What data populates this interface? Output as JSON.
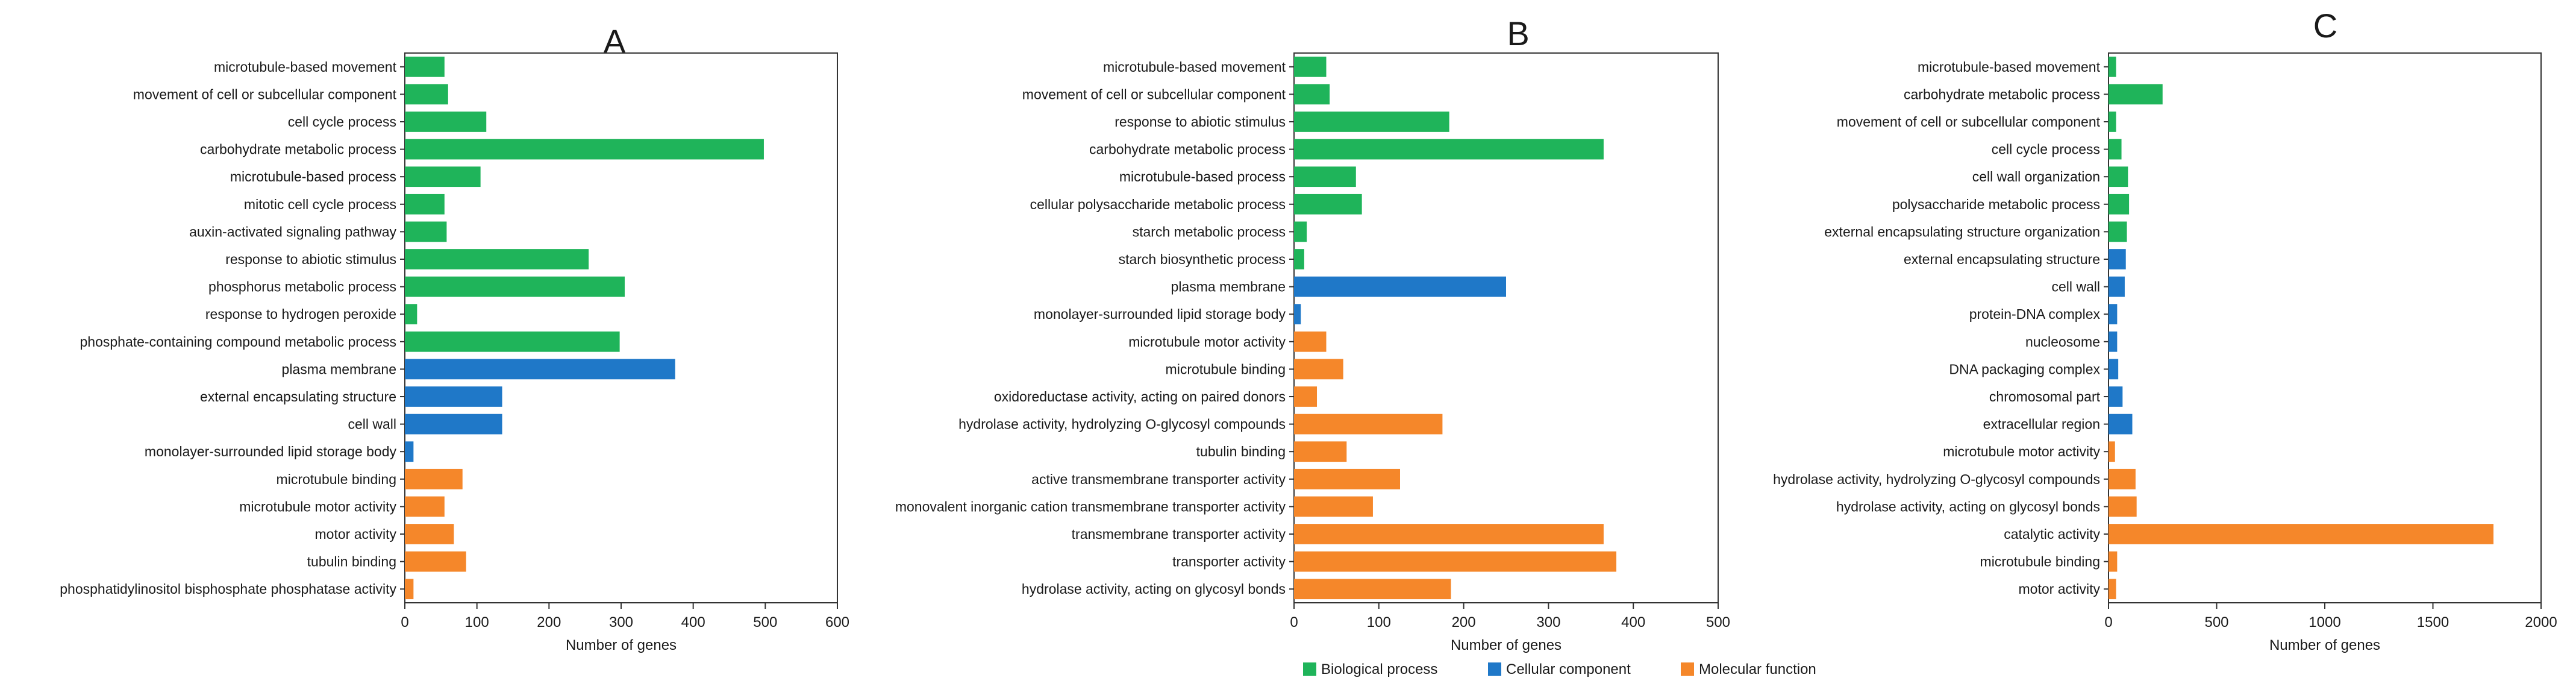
{
  "figure": "Horizontal bar charts of GO enrichment (panels A, B, C)",
  "colors": {
    "Biological process": "#1fb45a",
    "Cellular component": "#1f78c8",
    "Molecular function": "#f5872a"
  },
  "legend": [
    "Biological process",
    "Cellular component",
    "Molecular function"
  ],
  "chart_data": [
    {
      "type": "bar",
      "orientation": "horizontal",
      "title": "A",
      "xlabel": "Number of genes",
      "xlim": [
        0,
        600
      ],
      "xticks": [
        0,
        100,
        200,
        300,
        400,
        500,
        600
      ],
      "categories": [
        "microtubule-based movement",
        "movement of cell or subcellular component",
        "cell cycle process",
        "carbohydrate metabolic process",
        "microtubule-based process",
        "mitotic cell cycle process",
        "auxin-activated signaling pathway",
        "response to abiotic stimulus",
        "phosphorus metabolic process",
        "response to hydrogen peroxide",
        "phosphate-containing compound metabolic process",
        "plasma membrane",
        "external encapsulating structure",
        "cell wall",
        "monolayer-surrounded lipid storage body",
        "microtubule binding",
        "microtubule motor activity",
        "motor activity",
        "tubulin binding",
        "phosphatidylinositol bisphosphate phosphatase activity"
      ],
      "values": [
        55,
        60,
        113,
        498,
        105,
        55,
        58,
        255,
        305,
        17,
        298,
        375,
        135,
        135,
        12,
        80,
        55,
        68,
        85,
        12
      ],
      "groups": [
        "Biological process",
        "Biological process",
        "Biological process",
        "Biological process",
        "Biological process",
        "Biological process",
        "Biological process",
        "Biological process",
        "Biological process",
        "Biological process",
        "Biological process",
        "Cellular component",
        "Cellular component",
        "Cellular component",
        "Cellular component",
        "Molecular function",
        "Molecular function",
        "Molecular function",
        "Molecular function",
        "Molecular function"
      ]
    },
    {
      "type": "bar",
      "orientation": "horizontal",
      "title": "B",
      "xlabel": "Number of genes",
      "xlim": [
        0,
        500
      ],
      "xticks": [
        0,
        100,
        200,
        300,
        400,
        500
      ],
      "categories": [
        "microtubule-based movement",
        "movement of cell or subcellular component",
        "response to abiotic stimulus",
        "carbohydrate metabolic process",
        "microtubule-based process",
        "cellular polysaccharide metabolic process",
        "starch metabolic process",
        "starch biosynthetic process",
        "plasma membrane",
        "monolayer-surrounded lipid storage body",
        "microtubule motor activity",
        "microtubule binding",
        "oxidoreductase activity, acting on paired donors",
        "hydrolase activity, hydrolyzing O-glycosyl compounds",
        "tubulin binding",
        "active transmembrane transporter activity",
        "monovalent inorganic cation transmembrane transporter activity",
        "transmembrane transporter activity",
        "transporter activity",
        "hydrolase activity, acting on glycosyl bonds"
      ],
      "values": [
        38,
        42,
        183,
        365,
        73,
        80,
        15,
        12,
        250,
        8,
        38,
        58,
        27,
        175,
        62,
        125,
        93,
        365,
        380,
        185
      ],
      "groups": [
        "Biological process",
        "Biological process",
        "Biological process",
        "Biological process",
        "Biological process",
        "Biological process",
        "Biological process",
        "Biological process",
        "Cellular component",
        "Cellular component",
        "Molecular function",
        "Molecular function",
        "Molecular function",
        "Molecular function",
        "Molecular function",
        "Molecular function",
        "Molecular function",
        "Molecular function",
        "Molecular function",
        "Molecular function"
      ]
    },
    {
      "type": "bar",
      "orientation": "horizontal",
      "title": "C",
      "xlabel": "Number of genes",
      "xlim": [
        0,
        2000
      ],
      "xticks": [
        0,
        500,
        1000,
        1500,
        2000
      ],
      "categories": [
        "microtubule-based movement",
        "carbohydrate metabolic process",
        "movement of cell or subcellular component",
        "cell cycle process",
        "cell wall organization",
        "polysaccharide metabolic process",
        "external encapsulating structure organization",
        "external encapsulating structure",
        "cell wall",
        "protein-DNA complex",
        "nucleosome",
        "DNA packaging complex",
        "chromosomal part",
        "extracellular region",
        "microtubule motor activity",
        "hydrolase activity, hydrolyzing O-glycosyl compounds",
        "hydrolase activity, acting on glycosyl bonds",
        "catalytic activity",
        "microtubule binding",
        "motor activity"
      ],
      "values": [
        35,
        250,
        35,
        60,
        90,
        95,
        85,
        80,
        75,
        40,
        40,
        45,
        65,
        110,
        30,
        125,
        130,
        1780,
        40,
        35
      ],
      "groups": [
        "Biological process",
        "Biological process",
        "Biological process",
        "Biological process",
        "Biological process",
        "Biological process",
        "Biological process",
        "Cellular component",
        "Cellular component",
        "Cellular component",
        "Cellular component",
        "Cellular component",
        "Cellular component",
        "Cellular component",
        "Molecular function",
        "Molecular function",
        "Molecular function",
        "Molecular function",
        "Molecular function",
        "Molecular function"
      ]
    }
  ]
}
